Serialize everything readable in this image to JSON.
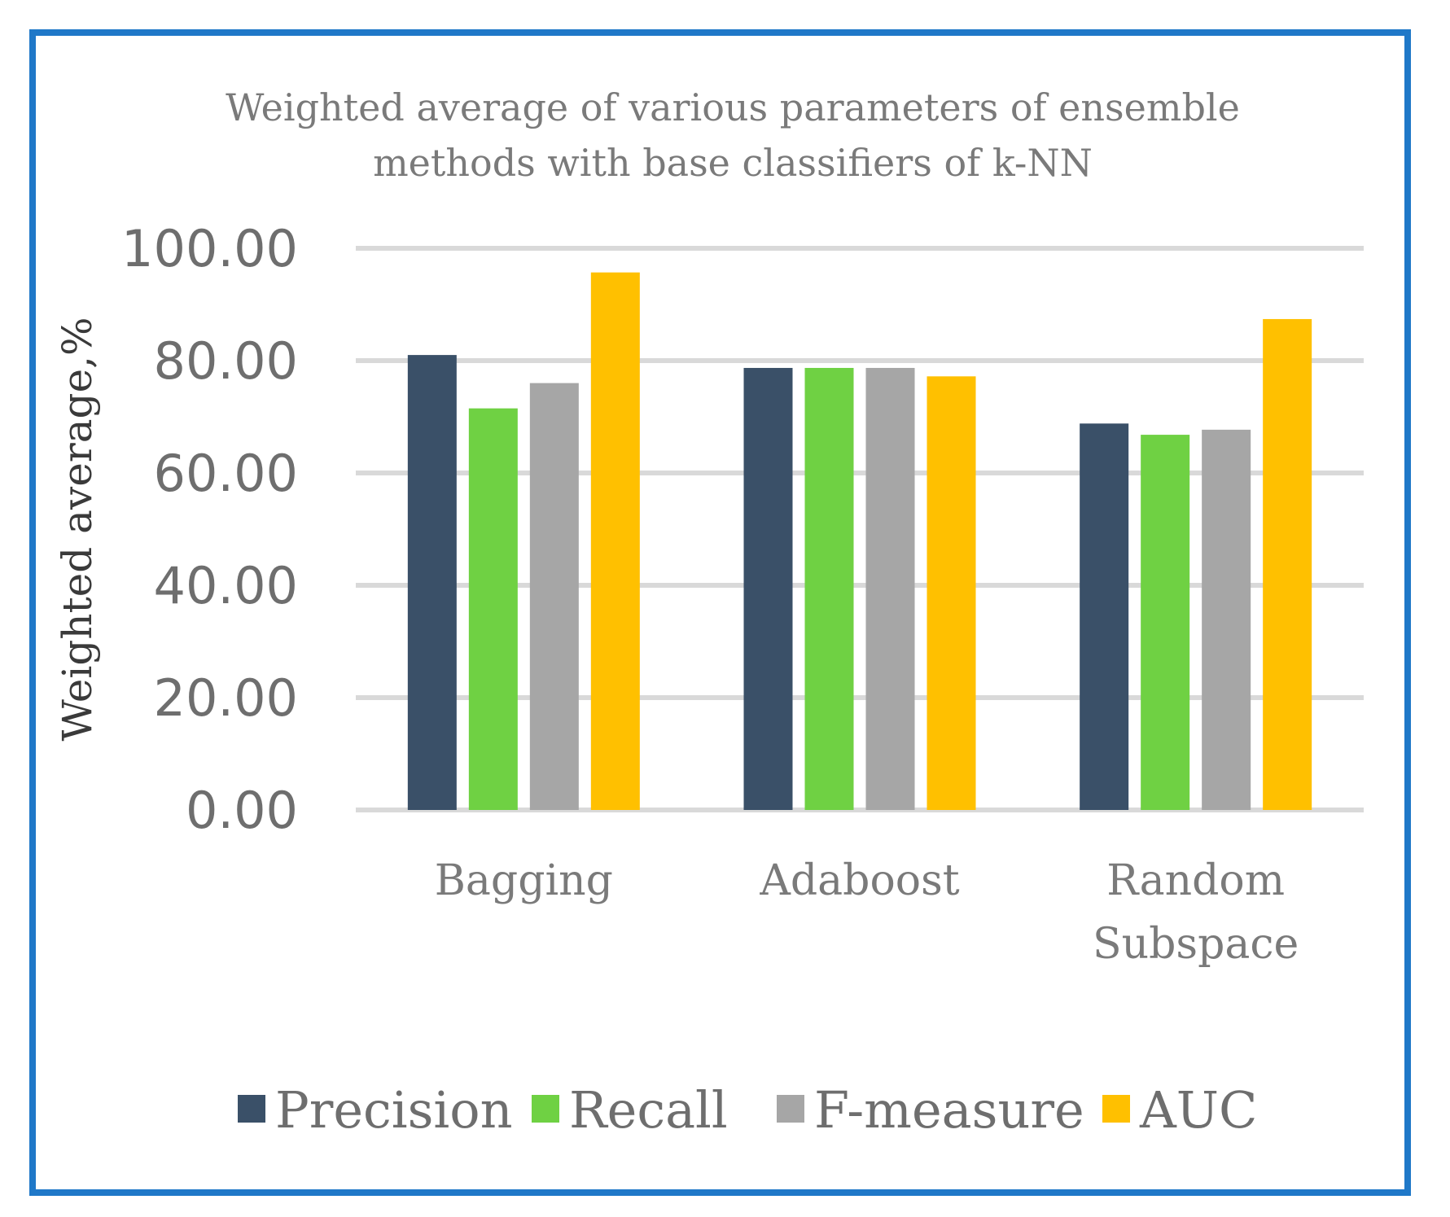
{
  "chart_data": {
    "type": "bar",
    "title_lines": [
      "Weighted average of various parameters of ensemble",
      "methods with base classifiers of  k-NN"
    ],
    "xlabel": "",
    "ylabel": "Weighted average,%",
    "ylim": [
      0,
      100
    ],
    "yticks": [
      0,
      20,
      40,
      60,
      80,
      100
    ],
    "ytick_labels": [
      "0.00",
      "20.00",
      "40.00",
      "60.00",
      "80.00",
      "100.00"
    ],
    "grid": true,
    "legend_position": "bottom",
    "categories": [
      {
        "name": "Bagging",
        "label_lines": [
          "Bagging"
        ]
      },
      {
        "name": "Adaboost",
        "label_lines": [
          "Adaboost"
        ]
      },
      {
        "name": "Random Subspace",
        "label_lines": [
          "Random",
          "Subspace"
        ]
      }
    ],
    "series": [
      {
        "name": "Precision",
        "color": "#3a5068",
        "values": [
          81,
          78.7,
          68.8
        ]
      },
      {
        "name": "Recall",
        "color": "#6fd143",
        "values": [
          71.5,
          78.7,
          66.8
        ]
      },
      {
        "name": "F-measure",
        "color": "#a6a6a6",
        "values": [
          76,
          78.7,
          67.7
        ]
      },
      {
        "name": "AUC",
        "color": "#ffc000",
        "values": [
          95.7,
          77.2,
          87.4
        ]
      }
    ]
  }
}
